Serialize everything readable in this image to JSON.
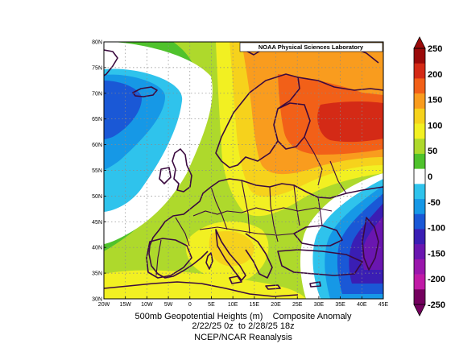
{
  "map": {
    "credit": "NOAA Physical Sciences Laboratory",
    "lat_ticks": [
      "30N",
      "35N",
      "40N",
      "45N",
      "50N",
      "55N",
      "60N",
      "65N",
      "70N",
      "75N",
      "80N"
    ],
    "lon_ticks": [
      "20W",
      "15W",
      "10W",
      "5W",
      "0",
      "5E",
      "10E",
      "15E",
      "20E",
      "25E",
      "30E",
      "35E",
      "40E",
      "45E"
    ],
    "extent": {
      "lon_min": -20,
      "lon_max": 45,
      "lat_min": 30,
      "lat_max": 80
    },
    "grid": true,
    "caption_line1": "500mb Geopotential Heights (m)    Composite Anomaly",
    "caption_line2": "2/22/25 0z  to 2/28/25 18z",
    "caption_line3": "NCEP/NCAR Reanalysis"
  },
  "colorbar": {
    "labels": [
      "250",
      "200",
      "150",
      "100",
      "50",
      "0",
      "-50",
      "-100",
      "-150",
      "-200",
      "-250"
    ],
    "colors": [
      "#9a0a0a",
      "#d42a16",
      "#f26018",
      "#f99c1e",
      "#f6d21c",
      "#f2f022",
      "#aed92c",
      "#4fc22c",
      "#ffffff",
      "#2fc3ec",
      "#1698e6",
      "#1a58d6",
      "#3a1eb4",
      "#6a16b0",
      "#9a16ac",
      "#c01aa6",
      "#74005e"
    ]
  }
}
